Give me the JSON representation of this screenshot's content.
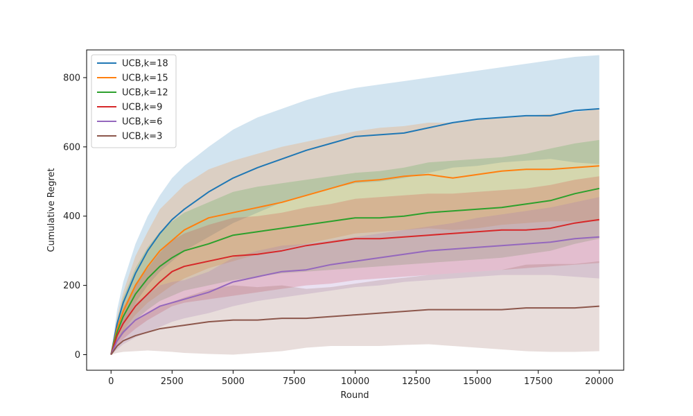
{
  "chart_data": {
    "type": "line",
    "title": "",
    "xlabel": "Round",
    "ylabel": "Cumulative Regret",
    "xlim": [
      -1000,
      21000
    ],
    "ylim": [
      -45,
      880
    ],
    "xticks": [
      0,
      2500,
      5000,
      7500,
      10000,
      12500,
      15000,
      17500,
      20000
    ],
    "yticks": [
      0,
      200,
      400,
      600,
      800
    ],
    "grid": false,
    "legend_position": "top-left",
    "x": [
      0,
      250,
      500,
      1000,
      1500,
      2000,
      2500,
      3000,
      4000,
      5000,
      6000,
      7000,
      8000,
      9000,
      10000,
      11000,
      12000,
      13000,
      14000,
      15000,
      16000,
      17000,
      18000,
      19000,
      20000
    ],
    "series": [
      {
        "name": "UCB,k=18",
        "color": "#1f77b4",
        "mean": [
          0,
          90,
          150,
          235,
          300,
          350,
          390,
          420,
          470,
          510,
          540,
          565,
          590,
          610,
          630,
          635,
          640,
          655,
          670,
          680,
          685,
          690,
          690,
          705,
          710
        ],
        "lower": [
          0,
          50,
          90,
          150,
          200,
          240,
          270,
          300,
          340,
          380,
          410,
          440,
          460,
          480,
          495,
          500,
          510,
          525,
          540,
          545,
          555,
          560,
          565,
          555,
          550
        ],
        "upper": [
          0,
          130,
          210,
          320,
          400,
          460,
          510,
          545,
          600,
          650,
          685,
          710,
          735,
          755,
          770,
          780,
          790,
          800,
          810,
          820,
          830,
          840,
          850,
          860,
          865
        ]
      },
      {
        "name": "UCB,k=15",
        "color": "#ff7f0e",
        "mean": [
          0,
          75,
          125,
          200,
          255,
          300,
          330,
          360,
          395,
          410,
          425,
          440,
          460,
          480,
          500,
          505,
          515,
          520,
          510,
          520,
          530,
          535,
          535,
          540,
          545
        ],
        "lower": [
          0,
          40,
          70,
          115,
          150,
          175,
          200,
          220,
          250,
          270,
          290,
          305,
          320,
          335,
          350,
          355,
          360,
          365,
          360,
          365,
          375,
          380,
          385,
          385,
          385
        ],
        "upper": [
          0,
          110,
          180,
          285,
          355,
          420,
          455,
          490,
          535,
          560,
          580,
          600,
          615,
          630,
          645,
          655,
          660,
          670,
          670,
          680,
          685,
          690,
          695,
          700,
          710
        ]
      },
      {
        "name": "UCB,k=12",
        "color": "#2ca02c",
        "mean": [
          0,
          65,
          110,
          175,
          220,
          255,
          280,
          300,
          320,
          345,
          355,
          365,
          375,
          385,
          395,
          395,
          400,
          410,
          415,
          420,
          425,
          435,
          445,
          465,
          480
        ],
        "lower": [
          0,
          35,
          60,
          100,
          130,
          155,
          170,
          185,
          200,
          215,
          225,
          235,
          240,
          245,
          250,
          255,
          260,
          265,
          270,
          275,
          280,
          290,
          300,
          320,
          335
        ],
        "upper": [
          0,
          100,
          165,
          250,
          310,
          355,
          385,
          410,
          440,
          470,
          485,
          495,
          505,
          515,
          525,
          530,
          540,
          555,
          560,
          565,
          570,
          580,
          595,
          610,
          620
        ]
      },
      {
        "name": "UCB,k=9",
        "color": "#d62728",
        "mean": [
          0,
          55,
          90,
          140,
          175,
          210,
          240,
          255,
          270,
          285,
          290,
          300,
          315,
          325,
          335,
          335,
          340,
          345,
          350,
          355,
          360,
          360,
          365,
          380,
          390
        ],
        "lower": [
          0,
          25,
          45,
          75,
          100,
          120,
          140,
          150,
          160,
          170,
          180,
          190,
          200,
          205,
          215,
          220,
          225,
          230,
          235,
          240,
          245,
          250,
          255,
          260,
          265
        ],
        "upper": [
          0,
          85,
          135,
          205,
          250,
          295,
          330,
          350,
          375,
          395,
          400,
          410,
          425,
          435,
          450,
          455,
          460,
          465,
          465,
          470,
          475,
          480,
          490,
          505,
          515
        ]
      },
      {
        "name": "UCB,k=6",
        "color": "#9467bd",
        "mean": [
          0,
          40,
          65,
          100,
          120,
          140,
          150,
          160,
          180,
          210,
          225,
          240,
          245,
          260,
          270,
          280,
          290,
          300,
          305,
          310,
          315,
          320,
          325,
          335,
          340
        ],
        "lower": [
          0,
          15,
          30,
          50,
          65,
          80,
          95,
          105,
          120,
          140,
          155,
          165,
          175,
          185,
          195,
          200,
          210,
          215,
          220,
          225,
          230,
          230,
          230,
          225,
          220
        ],
        "upper": [
          0,
          65,
          100,
          150,
          175,
          200,
          210,
          215,
          240,
          280,
          300,
          315,
          320,
          330,
          340,
          350,
          360,
          370,
          380,
          395,
          405,
          415,
          425,
          440,
          455
        ]
      },
      {
        "name": "UCB,k=3",
        "color": "#8c564b",
        "mean": [
          0,
          25,
          40,
          55,
          65,
          75,
          80,
          85,
          95,
          100,
          100,
          105,
          105,
          110,
          115,
          120,
          125,
          130,
          130,
          130,
          130,
          135,
          135,
          135,
          140
        ],
        "lower": [
          0,
          5,
          8,
          10,
          12,
          10,
          8,
          5,
          2,
          0,
          5,
          10,
          20,
          25,
          25,
          25,
          28,
          30,
          25,
          20,
          15,
          10,
          8,
          8,
          10
        ],
        "upper": [
          0,
          45,
          72,
          100,
          118,
          140,
          152,
          165,
          188,
          200,
          195,
          200,
          190,
          195,
          205,
          215,
          222,
          230,
          235,
          240,
          245,
          260,
          262,
          262,
          270
        ]
      }
    ]
  }
}
